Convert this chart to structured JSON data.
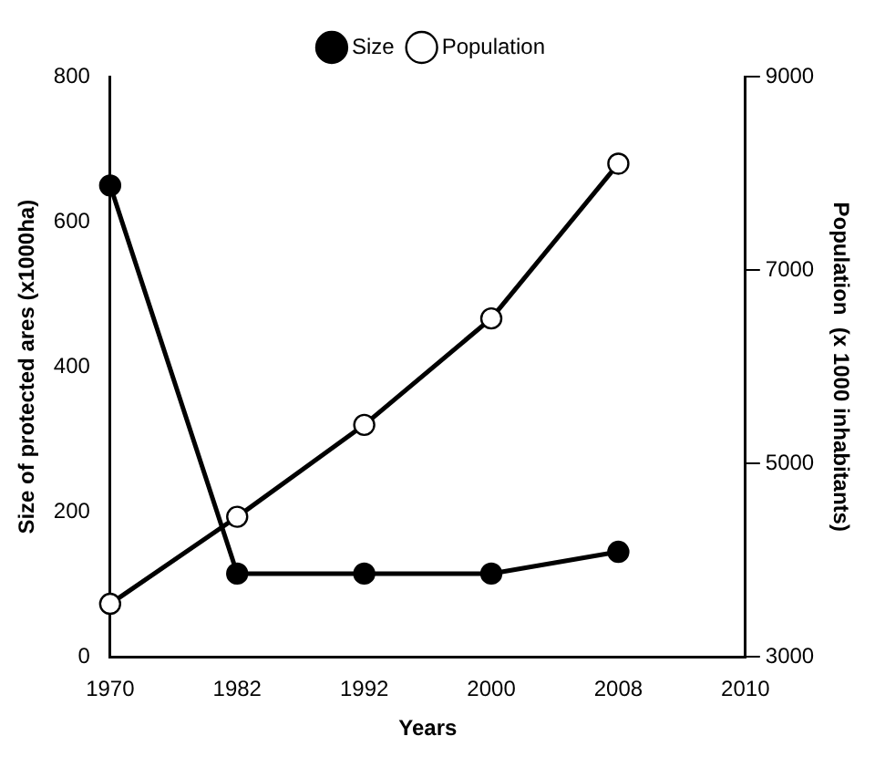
{
  "chart_data": {
    "type": "line",
    "xlabel": "Years",
    "ylabel": "Size of protected ares (x1000ha)",
    "y2label": "Population  (x 1000 inhabitants)",
    "categories": [
      "1970",
      "1982",
      "1992",
      "2000",
      "2008",
      "2010"
    ],
    "series": [
      {
        "name": "Size",
        "color": "#000000",
        "values": [
          650,
          115,
          115,
          115,
          145,
          null
        ]
      },
      {
        "name": "Population",
        "color": "#000000",
        "axis": "y2",
        "values": [
          3550,
          4450,
          5400,
          6500,
          8100,
          null
        ]
      }
    ],
    "ylim": [
      0,
      800
    ],
    "yticks": [
      0,
      200,
      400,
      600,
      800
    ],
    "y2lim": [
      3000,
      9000
    ],
    "y2ticks": [
      3000,
      5000,
      7000,
      9000
    ],
    "grid": false,
    "legend": "top",
    "marker": "circle",
    "line_style": "solid"
  }
}
